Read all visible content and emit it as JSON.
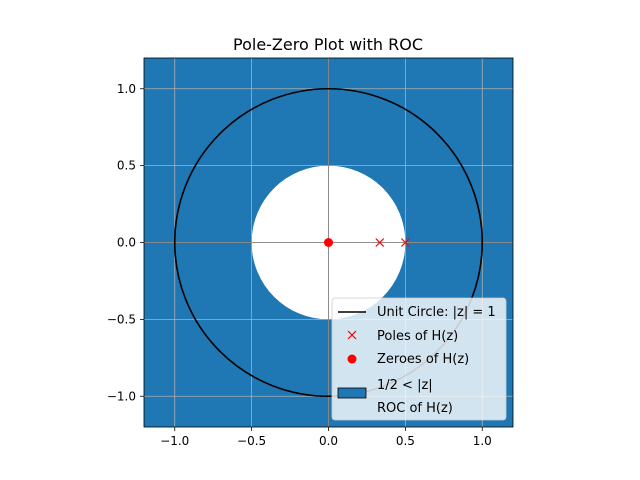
{
  "chart_data": {
    "type": "scatter",
    "title": "Pole-Zero Plot with ROC",
    "xlabel": "",
    "ylabel": "",
    "xlim": [
      -1.2,
      1.2
    ],
    "ylim": [
      -1.2,
      1.2
    ],
    "grid": true,
    "legend_position": "lower-right",
    "x_ticks": [
      -1.0,
      -0.5,
      0.0,
      0.5,
      1.0
    ],
    "x_tick_labels": [
      "−1.0",
      "−0.5",
      "0.0",
      "0.5",
      "1.0"
    ],
    "y_ticks": [
      1.0,
      0.5,
      0.0,
      -0.5,
      -1.0
    ],
    "y_tick_labels": [
      "1.0",
      "0.5",
      "0.0",
      "−0.5",
      "−1.0"
    ],
    "roc": {
      "inner_radius": 0.5,
      "color": "#1f77b4"
    },
    "unit_circle": {
      "radius": 1.0,
      "color": "#000000"
    },
    "poles": [
      {
        "x": 0.3333,
        "y": 0.0
      },
      {
        "x": 0.5,
        "y": 0.0
      }
    ],
    "zeroes": [
      {
        "x": 0.0,
        "y": 0.0
      }
    ],
    "series": [
      {
        "name": "Unit Circle: |z| = 1",
        "type": "line"
      },
      {
        "name": "Poles of H(z)",
        "type": "marker-x"
      },
      {
        "name": "Zeroes of H(z)",
        "type": "marker-dot"
      },
      {
        "name": "1/2 < |z|",
        "subname": "ROC of H(z)",
        "type": "patch"
      }
    ],
    "colors": {
      "pole": "#ff0000",
      "zero": "#ff0000",
      "roc": "#1f77b4",
      "axes": "#808080"
    }
  }
}
